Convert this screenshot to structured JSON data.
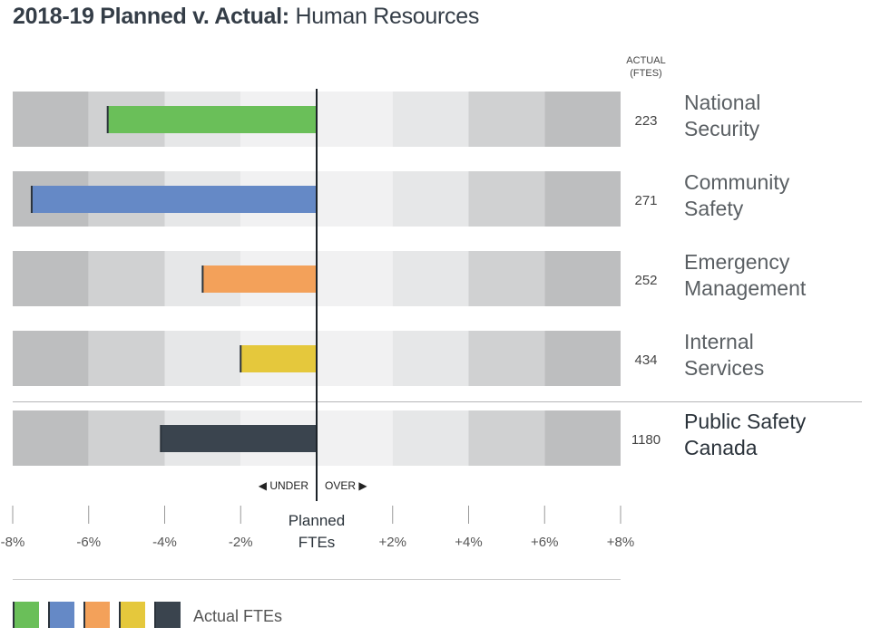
{
  "title": {
    "bold": "2018-19 Planned v. Actual:",
    "rest": "Human Resources"
  },
  "column_header": {
    "line1": "ACTUAL",
    "line2": "(FTES)"
  },
  "direction": {
    "under": "◀ UNDER",
    "over": "OVER ▶"
  },
  "center_label": {
    "line1": "Planned",
    "line2": "FTEs"
  },
  "legend_label": "Actual FTEs",
  "chart_data": {
    "type": "bar",
    "orientation": "horizontal",
    "xlim": [
      -8,
      8
    ],
    "x_ticks": [
      "-8%",
      "-6%",
      "-4%",
      "-2%",
      "+2%",
      "+4%",
      "+6%",
      "+8%"
    ],
    "x_tick_values": [
      -8,
      -6,
      -4,
      -2,
      2,
      4,
      6,
      8
    ],
    "categories": [
      {
        "line1": "National",
        "line2": "Security",
        "actual_ftes": "223",
        "variance_pct": -5.5,
        "color": "#6abf59"
      },
      {
        "line1": "Community",
        "line2": "Safety",
        "actual_ftes": "271",
        "variance_pct": -7.5,
        "color": "#6589c6"
      },
      {
        "line1": "Emergency",
        "line2": "Management",
        "actual_ftes": "252",
        "variance_pct": -3.0,
        "color": "#f3a15a"
      },
      {
        "line1": "Internal",
        "line2": "Services",
        "actual_ftes": "434",
        "variance_pct": -2.0,
        "color": "#e5c83c"
      },
      {
        "line1": "Public Safety",
        "line2": "Canada",
        "actual_ftes": "1180",
        "variance_pct": -4.1,
        "color": "#3a444e"
      }
    ],
    "band_colors": [
      "#bdbebf",
      "#d0d1d2",
      "#e6e7e8",
      "#f1f1f2",
      "#f1f1f2",
      "#e6e7e8",
      "#d0d1d2",
      "#bdbebf"
    ]
  }
}
